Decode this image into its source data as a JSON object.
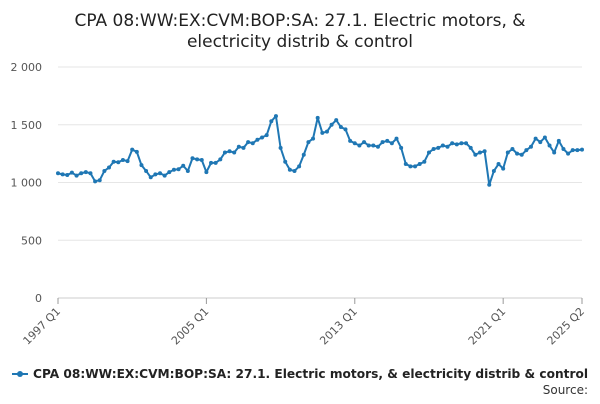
{
  "chart_data": {
    "type": "line",
    "title": [
      "CPA 08:WW:EX:CVM:BOP:SA: 27.1. Electric motors, &",
      "electricity distrib & control"
    ],
    "xlabel": "",
    "ylabel": "",
    "ylim": [
      0,
      2000
    ],
    "yticks": [
      0,
      500,
      1000,
      1500,
      2000
    ],
    "ytick_labels": [
      "0",
      "500",
      "1 000",
      "1 500",
      "2 000"
    ],
    "x_start": "1997 Q1",
    "xticks": [
      {
        "index": 0,
        "label": "1997 Q1"
      },
      {
        "index": 32,
        "label": "2005 Q1"
      },
      {
        "index": 64,
        "label": "2013 Q1"
      },
      {
        "index": 96,
        "label": "2021 Q1"
      },
      {
        "index": 113,
        "label": "2025 Q2"
      }
    ],
    "grid": true,
    "legend_position": "bottom",
    "series_color": "#1f77b4",
    "series": [
      {
        "name": "CPA 08:WW:EX:CVM:BOP:SA: 27.1. Electric motors, & electricity distrib & control",
        "values": [
          1080,
          1070,
          1065,
          1085,
          1060,
          1080,
          1090,
          1080,
          1010,
          1020,
          1100,
          1130,
          1180,
          1175,
          1195,
          1185,
          1285,
          1265,
          1150,
          1100,
          1045,
          1070,
          1080,
          1060,
          1090,
          1110,
          1115,
          1145,
          1100,
          1210,
          1200,
          1195,
          1090,
          1170,
          1170,
          1200,
          1260,
          1270,
          1260,
          1310,
          1300,
          1350,
          1340,
          1370,
          1390,
          1410,
          1530,
          1575,
          1300,
          1180,
          1110,
          1100,
          1140,
          1240,
          1350,
          1380,
          1560,
          1430,
          1440,
          1500,
          1540,
          1480,
          1460,
          1360,
          1340,
          1320,
          1350,
          1320,
          1320,
          1310,
          1350,
          1360,
          1340,
          1380,
          1300,
          1160,
          1140,
          1140,
          1160,
          1180,
          1260,
          1290,
          1300,
          1320,
          1310,
          1340,
          1330,
          1340,
          1340,
          1300,
          1240,
          1260,
          1270,
          980,
          1100,
          1160,
          1120,
          1260,
          1290,
          1250,
          1240,
          1280,
          1310,
          1380,
          1350,
          1390,
          1320,
          1260,
          1360,
          1290,
          1250,
          1280,
          1280,
          1285
        ]
      }
    ],
    "source_label": "Source:"
  }
}
